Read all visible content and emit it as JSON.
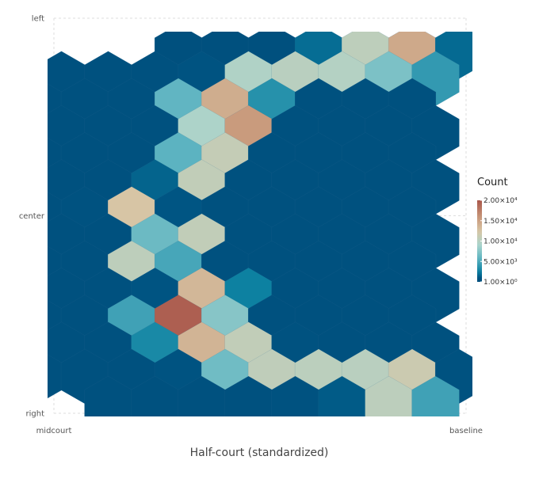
{
  "chart_data": {
    "type": "heatmap",
    "subtype": "hexbin",
    "title": "",
    "xlabel": "Half-court (standardized)",
    "ylabel": "",
    "x_ticks": [
      "midcourt",
      "baseline"
    ],
    "y_ticks": [
      "left",
      "center",
      "right"
    ],
    "grid": true,
    "legend": {
      "title": "Count",
      "position": "right",
      "ticks": [
        "1.00×10⁰",
        "5.00×10³",
        "1.00×10⁴",
        "1.50×10⁴",
        "2.00×10⁴"
      ],
      "tick_values": [
        1,
        5000,
        10000,
        15000,
        20000
      ],
      "range": [
        1,
        20000
      ]
    },
    "colorscale": [
      "#00507e",
      "#0a7fa0",
      "#5cb3c1",
      "#a9d4cc",
      "#d7c6a6",
      "#c99a7c",
      "#a9574b"
    ],
    "grid_size": {
      "columns": 10,
      "rows": 14
    },
    "rows_description": "Rows listed top (left sideline) to bottom (right sideline); each row lists bin counts from midcourt to baseline. Odd rows are offset by half a hex.",
    "rows": [
      [
        0,
        0,
        0,
        60,
        80,
        50,
        1800,
        10500,
        14500,
        1700
      ],
      [
        100,
        150,
        200,
        500,
        9500,
        10200,
        9800,
        7000,
        4000,
        0
      ],
      [
        100,
        150,
        200,
        5800,
        14200,
        3500,
        100,
        100,
        200,
        0
      ],
      [
        100,
        150,
        200,
        9300,
        15500,
        200,
        100,
        100,
        100,
        0
      ],
      [
        100,
        150,
        200,
        5600,
        11000,
        200,
        100,
        100,
        100,
        0
      ],
      [
        100,
        150,
        1500,
        10800,
        200,
        100,
        100,
        100,
        100,
        0
      ],
      [
        100,
        400,
        12500,
        1000,
        200,
        100,
        100,
        100,
        100,
        0
      ],
      [
        100,
        150,
        6300,
        10800,
        200,
        100,
        100,
        100,
        100,
        0
      ],
      [
        100,
        200,
        10500,
        4800,
        200,
        100,
        100,
        100,
        100,
        0
      ],
      [
        100,
        150,
        800,
        13500,
        2500,
        200,
        100,
        100,
        100,
        0
      ],
      [
        100,
        150,
        4500,
        19500,
        7500,
        200,
        100,
        100,
        100,
        0
      ],
      [
        100,
        200,
        3000,
        13700,
        10800,
        300,
        150,
        200,
        150,
        0
      ],
      [
        100,
        150,
        200,
        600,
        6500,
        10600,
        10300,
        10200,
        11500,
        300
      ],
      [
        0,
        200,
        200,
        150,
        250,
        300,
        1200,
        10400,
        4500,
        0
      ]
    ]
  }
}
